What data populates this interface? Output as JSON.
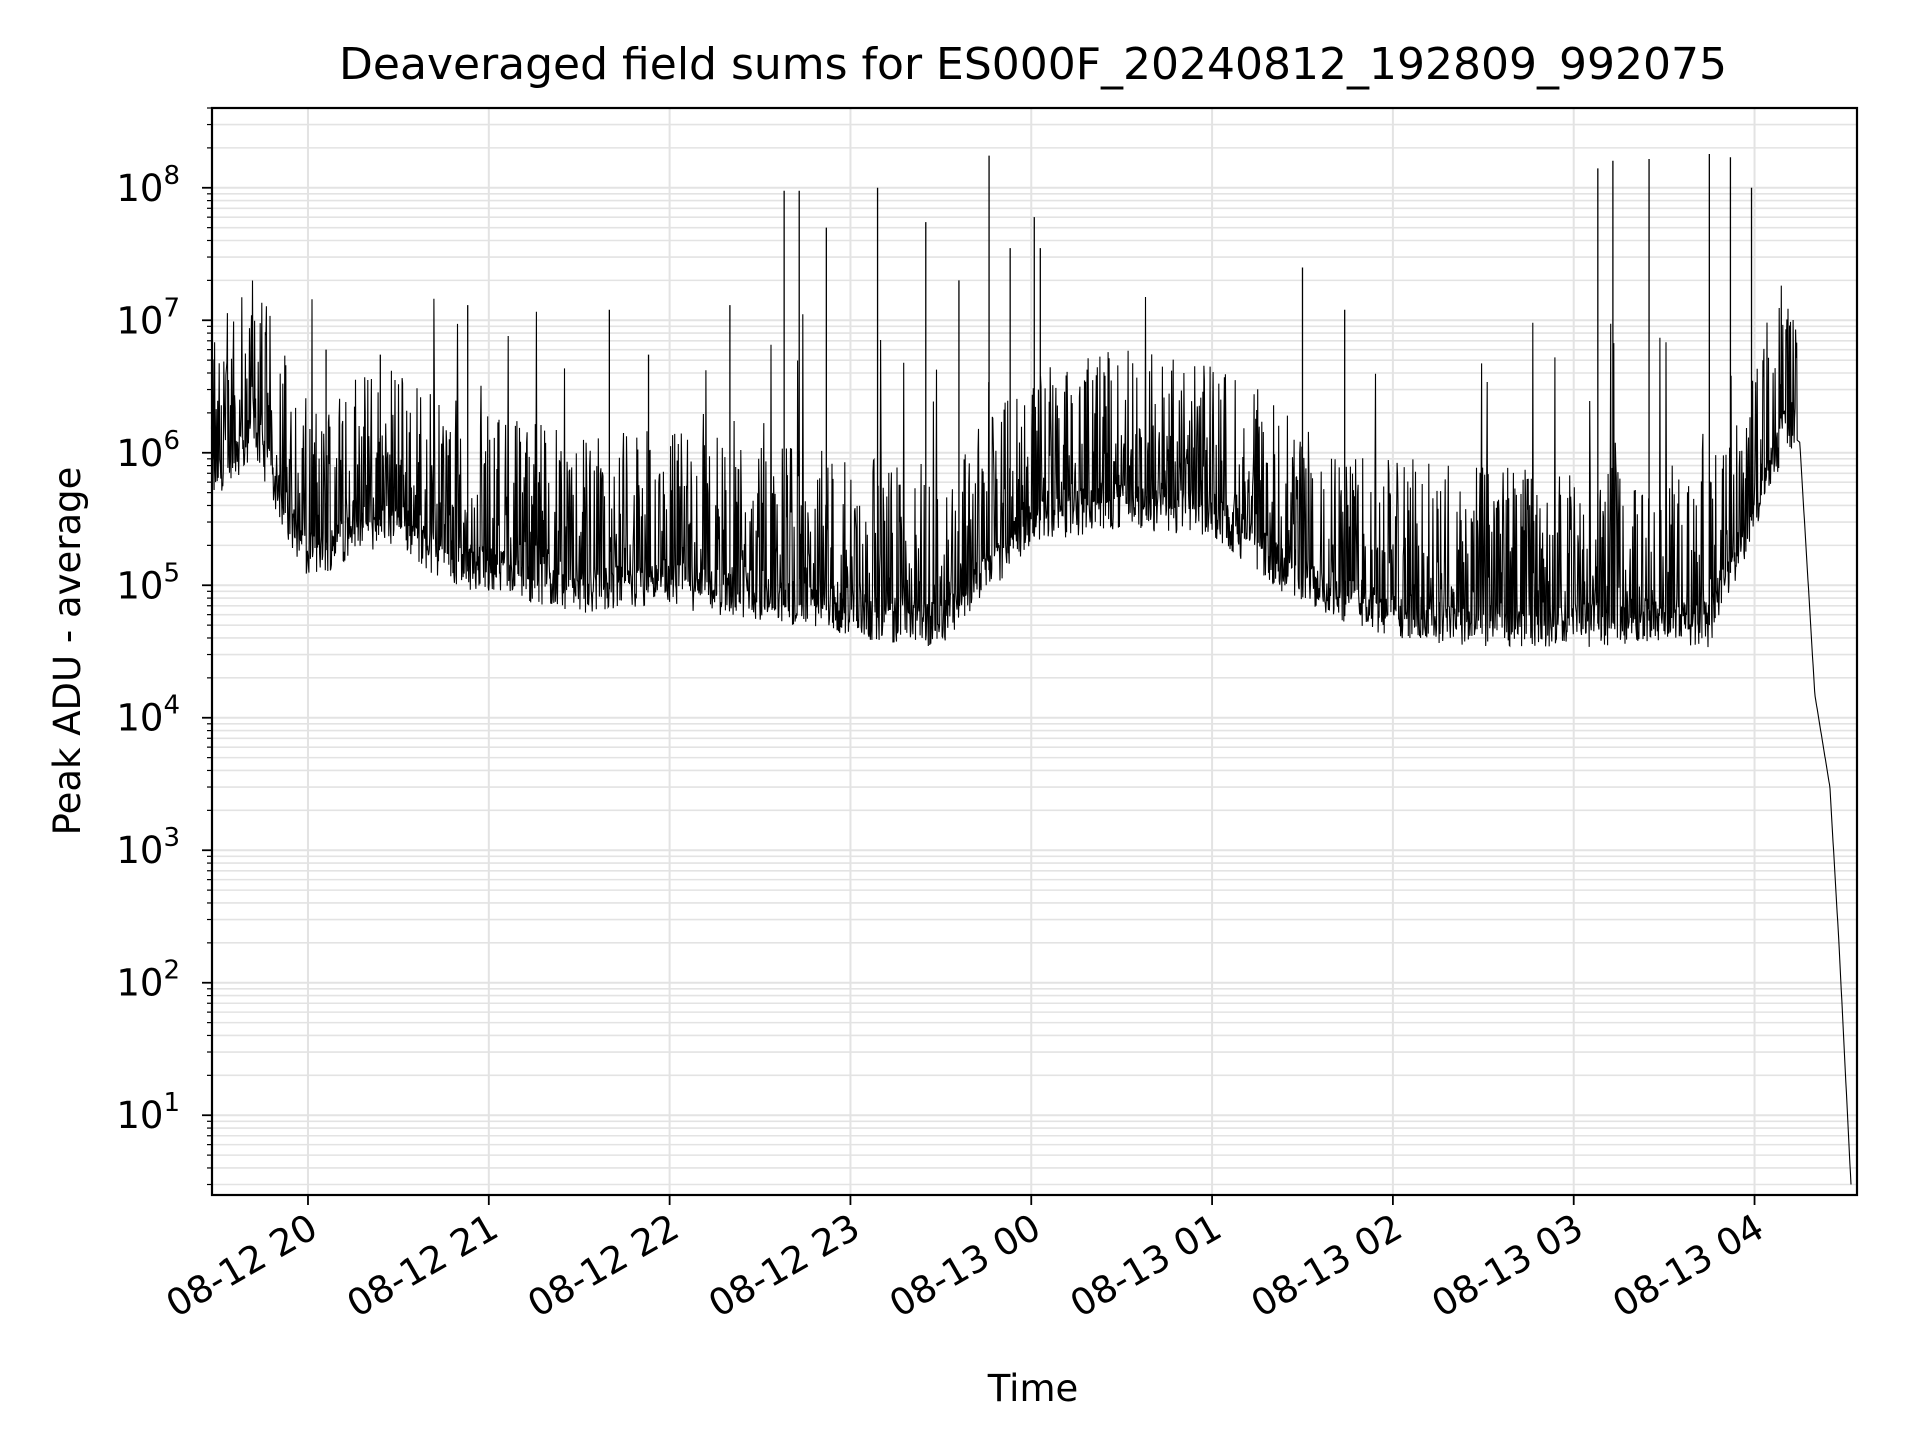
{
  "chart_data": {
    "type": "line",
    "title": "Deaveraged field sums for ES000F_20240812_192809_992075",
    "xlabel": "Time",
    "ylabel": "Peak ADU - average",
    "yscale": "log",
    "ylim": [
      2.5,
      400000000
    ],
    "xlim": [
      "2024-08-12 19:28:09",
      "2024-08-13 04:34:00"
    ],
    "grid": true,
    "grid_color": "#e3e3e3",
    "line_color": "#000000",
    "x_ticks": [
      {
        "time": "2024-08-12 20:00",
        "label": "08-12 20"
      },
      {
        "time": "2024-08-12 21:00",
        "label": "08-12 21"
      },
      {
        "time": "2024-08-12 22:00",
        "label": "08-12 22"
      },
      {
        "time": "2024-08-12 23:00",
        "label": "08-12 23"
      },
      {
        "time": "2024-08-13 00:00",
        "label": "08-13 00"
      },
      {
        "time": "2024-08-13 01:00",
        "label": "08-13 01"
      },
      {
        "time": "2024-08-13 02:00",
        "label": "08-13 02"
      },
      {
        "time": "2024-08-13 03:00",
        "label": "08-13 03"
      },
      {
        "time": "2024-08-13 04:00",
        "label": "08-13 04"
      }
    ],
    "y_ticks": [
      {
        "value": 10,
        "base": "10",
        "exp": "1"
      },
      {
        "value": 100,
        "base": "10",
        "exp": "2"
      },
      {
        "value": 1000,
        "base": "10",
        "exp": "3"
      },
      {
        "value": 10000,
        "base": "10",
        "exp": "4"
      },
      {
        "value": 100000,
        "base": "10",
        "exp": "5"
      },
      {
        "value": 1000000,
        "base": "10",
        "exp": "6"
      },
      {
        "value": 10000000,
        "base": "10",
        "exp": "7"
      },
      {
        "value": 100000000,
        "base": "10",
        "exp": "8"
      }
    ],
    "series": [
      {
        "x": [
          "2024-08-12 19:28",
          "2024-08-12 19:35",
          "2024-08-12 19:42",
          "2024-08-12 19:50",
          "2024-08-12 20:00",
          "2024-08-12 20:15",
          "2024-08-12 20:30",
          "2024-08-12 20:45",
          "2024-08-12 21:00",
          "2024-08-12 21:30",
          "2024-08-12 22:00",
          "2024-08-12 22:30",
          "2024-08-12 23:00",
          "2024-08-12 23:30",
          "2024-08-13 00:00",
          "2024-08-13 00:30",
          "2024-08-13 01:00",
          "2024-08-13 01:30",
          "2024-08-13 02:00",
          "2024-08-13 02:30",
          "2024-08-13 03:00",
          "2024-08-13 03:30",
          "2024-08-13 03:45",
          "2024-08-13 04:00",
          "2024-08-13 04:10",
          "2024-08-13 04:15",
          "2024-08-13 04:20",
          "2024-08-13 04:25",
          "2024-08-13 04:28",
          "2024-08-13 04:32"
        ],
        "y": [
          650000,
          750000,
          1500000,
          500000,
          150000,
          250000,
          300000,
          150000,
          130000,
          90000,
          100000,
          80000,
          60000,
          50000,
          300000,
          400000,
          350000,
          100000,
          60000,
          50000,
          50000,
          55000,
          50000,
          350000,
          1500000,
          1200000,
          15000,
          3000,
          200,
          3
        ]
      }
    ],
    "spikes": [
      {
        "time": "2024-08-12 20:06",
        "peak": 6000000
      },
      {
        "time": "2024-08-12 20:24",
        "peak": 5500000
      },
      {
        "time": "2024-08-12 20:53",
        "peak": 13000000
      },
      {
        "time": "2024-08-12 21:40",
        "peak": 12000000
      },
      {
        "time": "2024-08-12 21:53",
        "peak": 5500000
      },
      {
        "time": "2024-08-12 22:20",
        "peak": 13000000
      },
      {
        "time": "2024-08-12 22:38",
        "peak": 95000000
      },
      {
        "time": "2024-08-12 22:43",
        "peak": 95000000
      },
      {
        "time": "2024-08-12 22:52",
        "peak": 50000000
      },
      {
        "time": "2024-08-12 23:09",
        "peak": 100000000
      },
      {
        "time": "2024-08-12 23:25",
        "peak": 55000000
      },
      {
        "time": "2024-08-12 23:36",
        "peak": 20000000
      },
      {
        "time": "2024-08-12 23:46",
        "peak": 175000000
      },
      {
        "time": "2024-08-12 23:53",
        "peak": 35000000
      },
      {
        "time": "2024-08-13 00:01",
        "peak": 60000000
      },
      {
        "time": "2024-08-13 00:03",
        "peak": 35000000
      },
      {
        "time": "2024-08-13 01:30",
        "peak": 25000000
      },
      {
        "time": "2024-08-13 01:44",
        "peak": 12000000
      },
      {
        "time": "2024-08-13 03:08",
        "peak": 140000000
      },
      {
        "time": "2024-08-13 03:13",
        "peak": 160000000
      },
      {
        "time": "2024-08-13 03:25",
        "peak": 165000000
      },
      {
        "time": "2024-08-13 03:45",
        "peak": 180000000
      },
      {
        "time": "2024-08-13 03:52",
        "peak": 170000000
      },
      {
        "time": "2024-08-13 03:59",
        "peak": 100000000
      }
    ]
  }
}
